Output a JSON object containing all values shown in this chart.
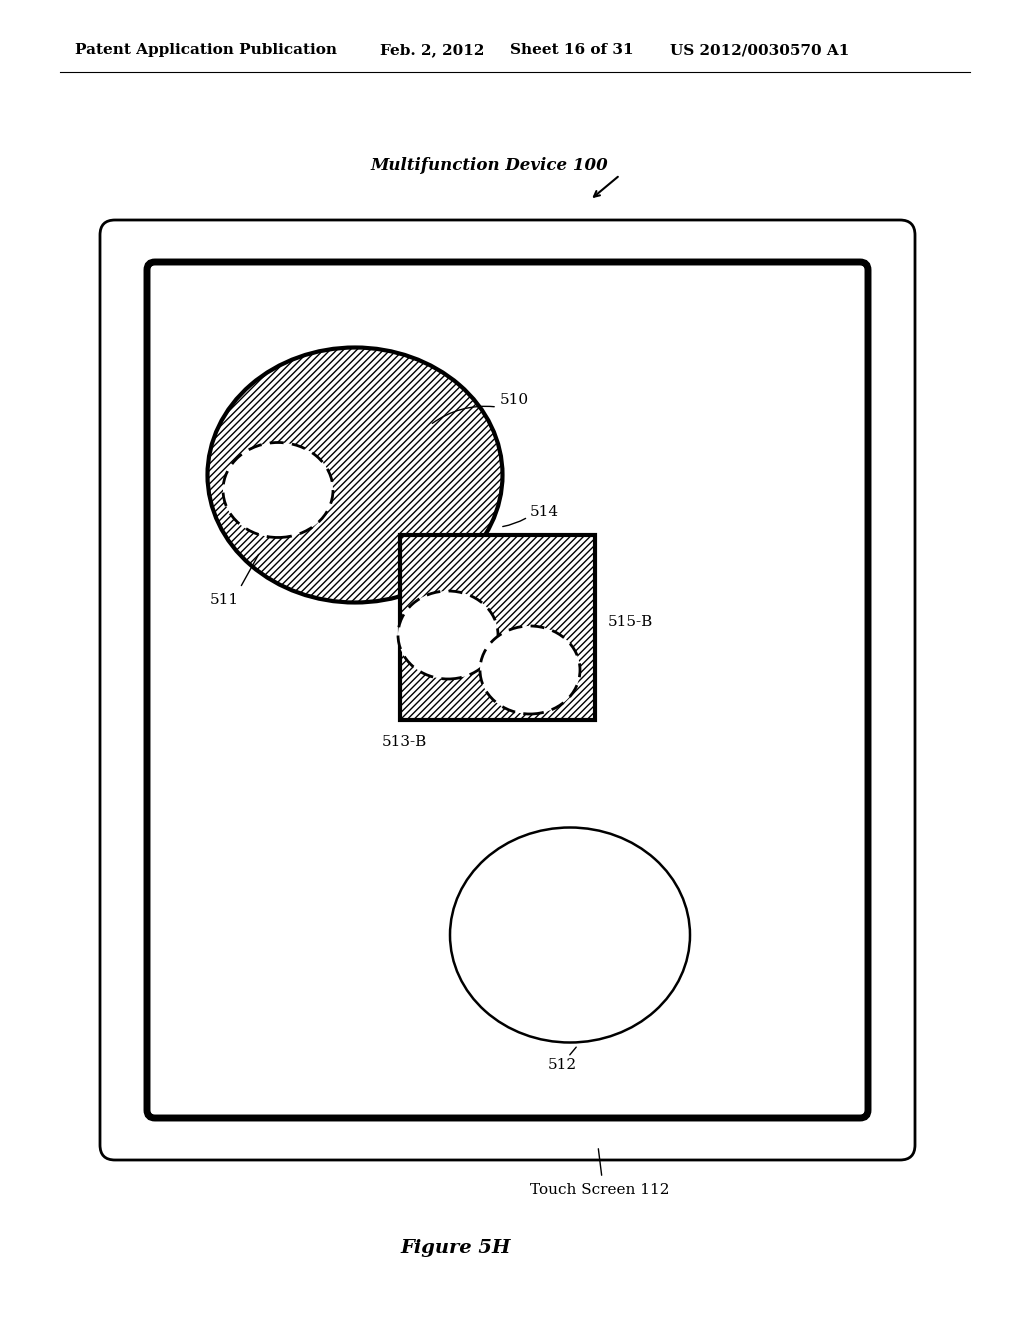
{
  "bg_color": "#ffffff",
  "header_text": "Patent Application Publication",
  "header_date": "Feb. 2, 2012",
  "header_sheet": "Sheet 16 of 31",
  "header_patent": "US 2012/0030570 A1",
  "title_label": "Multifunction Device 100",
  "figure_label": "Figure 5H",
  "touch_screen_label": "Touch Screen 112",
  "label_510": "510",
  "label_511": "511",
  "label_512": "512",
  "label_513b": "513-B",
  "label_514": "514",
  "label_515b": "515-B"
}
